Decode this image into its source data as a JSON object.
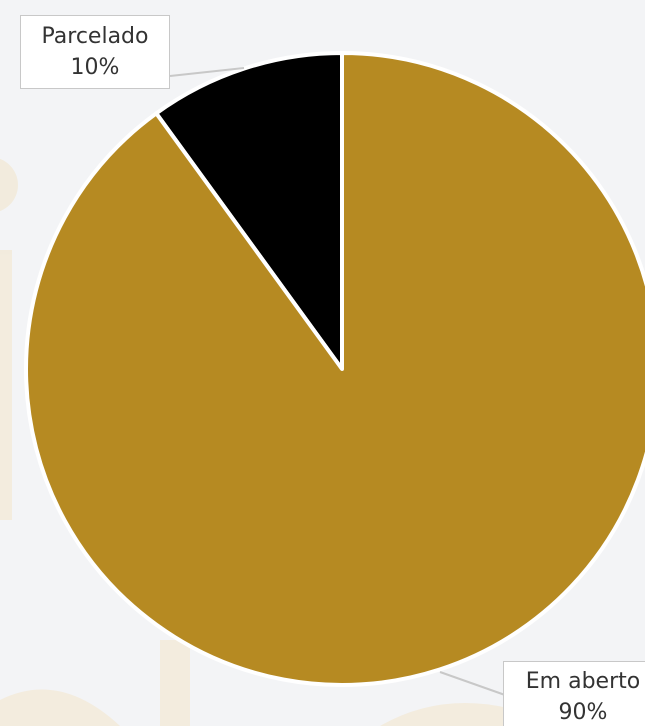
{
  "chart_data": {
    "type": "pie",
    "start_angle": "12 o'clock",
    "direction": "counterclockwise",
    "slices": [
      {
        "label": "Parcelado",
        "value": 10,
        "value_label": "10%",
        "color": "#000000"
      },
      {
        "label": "Em aberto",
        "value": 90,
        "value_label": "90%",
        "color": "#b68a22"
      }
    ],
    "legend": "none (callout labels)",
    "background": "#f3f4f6"
  }
}
